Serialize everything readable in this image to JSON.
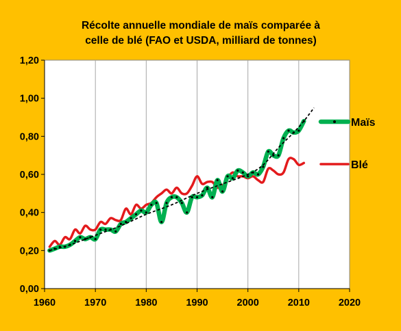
{
  "chart_data": {
    "type": "line",
    "title_lines": [
      "Récolte annuelle  mondiale de maïs comparée à",
      "celle de blé (FAO et USDA, milliard de tonnes)"
    ],
    "xlabel": "",
    "ylabel": "",
    "xlim": [
      1960,
      2020
    ],
    "ylim": [
      0,
      1.2
    ],
    "x_ticks": [
      "1960",
      "1970",
      "1980",
      "1990",
      "2000",
      "2010",
      "2020"
    ],
    "y_ticks": [
      "0,00",
      "0,20",
      "0,40",
      "0,60",
      "0,80",
      "1,00",
      "1,20"
    ],
    "grid": "vertical",
    "legend_position": "right",
    "series": [
      {
        "name": "Maïs",
        "style": "thick-green-with-dots",
        "color": "#00B050",
        "x": [
          1961,
          1962,
          1963,
          1964,
          1965,
          1966,
          1967,
          1968,
          1969,
          1970,
          1971,
          1972,
          1973,
          1974,
          1975,
          1976,
          1977,
          1978,
          1979,
          1980,
          1981,
          1982,
          1983,
          1984,
          1985,
          1986,
          1987,
          1988,
          1989,
          1990,
          1991,
          1992,
          1993,
          1994,
          1995,
          1996,
          1997,
          1998,
          1999,
          2000,
          2001,
          2002,
          2003,
          2004,
          2005,
          2006,
          2007,
          2008,
          2009,
          2010,
          2011
        ],
        "values": [
          0.2,
          0.21,
          0.22,
          0.22,
          0.23,
          0.25,
          0.27,
          0.26,
          0.27,
          0.26,
          0.31,
          0.31,
          0.31,
          0.3,
          0.34,
          0.35,
          0.37,
          0.39,
          0.41,
          0.4,
          0.44,
          0.45,
          0.35,
          0.45,
          0.48,
          0.48,
          0.45,
          0.4,
          0.48,
          0.48,
          0.49,
          0.53,
          0.48,
          0.57,
          0.51,
          0.59,
          0.58,
          0.62,
          0.61,
          0.59,
          0.61,
          0.6,
          0.64,
          0.72,
          0.7,
          0.7,
          0.79,
          0.83,
          0.82,
          0.83,
          0.88
        ]
      },
      {
        "name": "Blé",
        "style": "red-line",
        "color": "#E31A1C",
        "x": [
          1961,
          1962,
          1963,
          1964,
          1965,
          1966,
          1967,
          1968,
          1969,
          1970,
          1971,
          1972,
          1973,
          1974,
          1975,
          1976,
          1977,
          1978,
          1979,
          1980,
          1981,
          1982,
          1983,
          1984,
          1985,
          1986,
          1987,
          1988,
          1989,
          1990,
          1991,
          1992,
          1993,
          1994,
          1995,
          1996,
          1997,
          1998,
          1999,
          2000,
          2001,
          2002,
          2003,
          2004,
          2005,
          2006,
          2007,
          2008,
          2009,
          2010,
          2011
        ],
        "values": [
          0.22,
          0.25,
          0.23,
          0.27,
          0.26,
          0.31,
          0.29,
          0.33,
          0.31,
          0.31,
          0.35,
          0.34,
          0.37,
          0.36,
          0.36,
          0.42,
          0.39,
          0.44,
          0.42,
          0.44,
          0.45,
          0.48,
          0.5,
          0.52,
          0.5,
          0.53,
          0.5,
          0.5,
          0.54,
          0.59,
          0.55,
          0.56,
          0.56,
          0.53,
          0.54,
          0.58,
          0.61,
          0.59,
          0.59,
          0.58,
          0.59,
          0.57,
          0.56,
          0.63,
          0.62,
          0.6,
          0.61,
          0.68,
          0.68,
          0.65,
          0.66
        ]
      },
      {
        "name": "",
        "style": "dashed-trend",
        "color": "#000000",
        "x": [
          1961,
          1965,
          1970,
          1975,
          1980,
          1985,
          1990,
          1995,
          2000,
          2003,
          2006,
          2009,
          2011,
          2013
        ],
        "values": [
          0.2,
          0.23,
          0.28,
          0.33,
          0.39,
          0.44,
          0.5,
          0.55,
          0.6,
          0.65,
          0.74,
          0.82,
          0.88,
          0.95
        ]
      }
    ],
    "legend": [
      {
        "label": "Maïs",
        "color": "#00B050"
      },
      {
        "label": "Blé",
        "color": "#E31A1C"
      }
    ],
    "colors": {
      "background": "#FFC000",
      "plot_area": "#FFFFFF",
      "grid": "#A6A6A6"
    }
  }
}
